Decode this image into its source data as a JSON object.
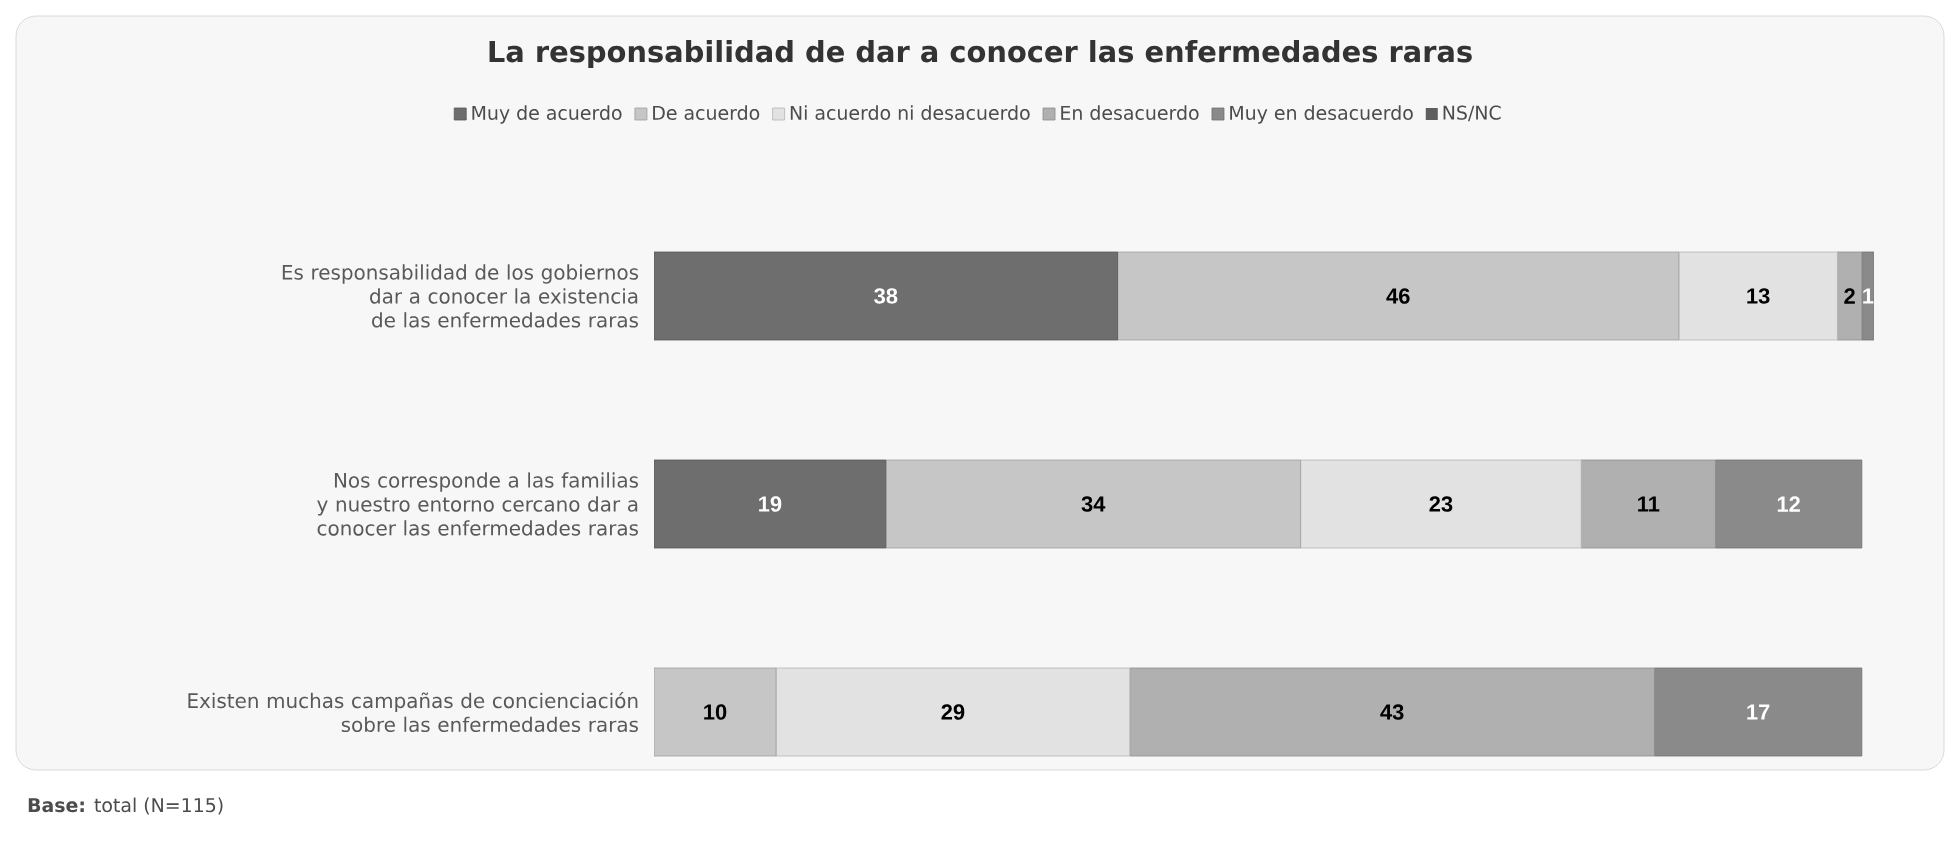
{
  "chart_data": {
    "type": "bar",
    "orientation": "horizontal",
    "stacked": true,
    "data_labels": true,
    "legend": "top",
    "title": "La responsabilidad de dar a conocer las enfermedades raras",
    "categories": [
      "Es responsabilidad de los gobiernos dar a conocer la existencia de las enfermedades raras",
      "Nos corresponde a las familias y nuestro entorno cercano dar a conocer las enfermedades raras",
      "Existen muchas campañas de concienciación sobre las enfermedades raras"
    ],
    "series": [
      {
        "name": "Muy de acuerdo",
        "color": "#6e6e6e",
        "values": [
          38,
          19,
          null
        ]
      },
      {
        "name": "De acuerdo",
        "color": "#c6c6c6",
        "values": [
          46,
          34,
          10
        ]
      },
      {
        "name": "Ni acuerdo ni desacuerdo",
        "color": "#e2e2e2",
        "values": [
          13,
          23,
          29
        ]
      },
      {
        "name": "En desacuerdo",
        "color": "#b0b0b0",
        "values": [
          2,
          11,
          43
        ]
      },
      {
        "name": "Muy en desacuerdo",
        "color": "#8a8a8a",
        "values": [
          1,
          12,
          17
        ]
      },
      {
        "name": "NS/NC",
        "color": "#5e5e5e",
        "values": [
          null,
          null,
          null
        ]
      }
    ],
    "annotations": [
      "**Base:** total (N=115)"
    ]
  }
}
